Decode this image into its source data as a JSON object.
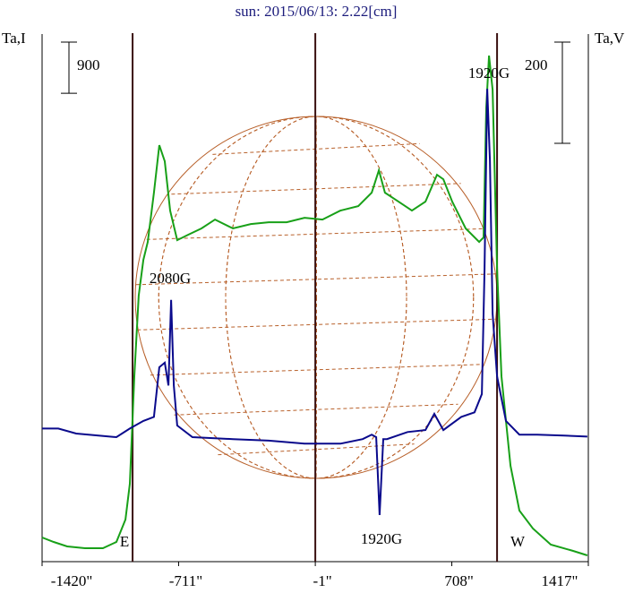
{
  "chart_data": {
    "type": "line",
    "title": "sun: 2015/06/13: 2.22[cm]",
    "y_label": "Ta,I",
    "y2_label": "Ta,V",
    "xlim": [
      -1420,
      1417
    ],
    "xticks": [
      {
        "value": -1420,
        "label": "-1420\""
      },
      {
        "value": -711,
        "label": "-711\""
      },
      {
        "value": -1,
        "label": "-1\""
      },
      {
        "value": 708,
        "label": "708\""
      },
      {
        "value": 1417,
        "label": "1417\""
      }
    ],
    "ylim": [
      0,
      9300
    ],
    "y2lim": [
      -251,
      793
    ],
    "y_scale_bar": 900,
    "y2_scale_bar": 200,
    "limbs": [
      {
        "label": "E",
        "x": -950
      },
      {
        "label": "W",
        "x": 943
      }
    ],
    "annotations": [
      "2080G",
      "1920G",
      "1920G"
    ],
    "series": [
      {
        "color": "#18a018",
        "x": [
          -1420,
          -1360,
          -1290,
          -1197,
          -1104,
          -1034,
          -987,
          -964,
          -941,
          -918,
          -894,
          -871,
          -839,
          -811,
          -783,
          -755,
          -718,
          -662,
          -592,
          -522,
          -429,
          -336,
          -243,
          -150,
          -57,
          36,
          129,
          222,
          292,
          329,
          361,
          431,
          501,
          571,
          631,
          664,
          710,
          780,
          850,
          873,
          887,
          901,
          920,
          943,
          966,
          1013,
          1059,
          1129,
          1222,
          1338,
          1412
        ],
        "values": [
          426,
          347,
          268,
          236,
          236,
          347,
          741,
          1371,
          3262,
          4681,
          5311,
          5626,
          6493,
          7328,
          7045,
          6178,
          5658,
          5752,
          5863,
          6020,
          5863,
          5941,
          5973,
          5973,
          6052,
          6020,
          6178,
          6257,
          6493,
          6887,
          6493,
          6335,
          6178,
          6335,
          6808,
          6729,
          6335,
          5863,
          5626,
          5705,
          7990,
          8904,
          8306,
          5154,
          3262,
          1686,
          899,
          583,
          299,
          189,
          110
        ]
      },
      {
        "color": "#0a0a8c",
        "axis": "y2",
        "x": [
          -1420,
          -1336,
          -1243,
          -1127,
          -1034,
          -964,
          -894,
          -839,
          -811,
          -783,
          -764,
          -750,
          -736,
          -718,
          -639,
          -429,
          -243,
          -57,
          129,
          245,
          292,
          315,
          333,
          352,
          371,
          478,
          571,
          617,
          664,
          757,
          826,
          864,
          878,
          892,
          906,
          920,
          943,
          989,
          1059,
          1152,
          1291,
          1412
        ],
        "values": [
          12,
          12,
          2,
          -2,
          -5,
          12,
          27,
          35,
          133,
          142,
          97,
          266,
          97,
          18,
          -5,
          -9,
          -12,
          -18,
          -18,
          -9,
          0,
          -5,
          -159,
          -9,
          -9,
          5,
          9,
          41,
          9,
          35,
          44,
          80,
          327,
          683,
          542,
          239,
          115,
          27,
          0,
          0,
          -2,
          -4
        ]
      }
    ]
  }
}
